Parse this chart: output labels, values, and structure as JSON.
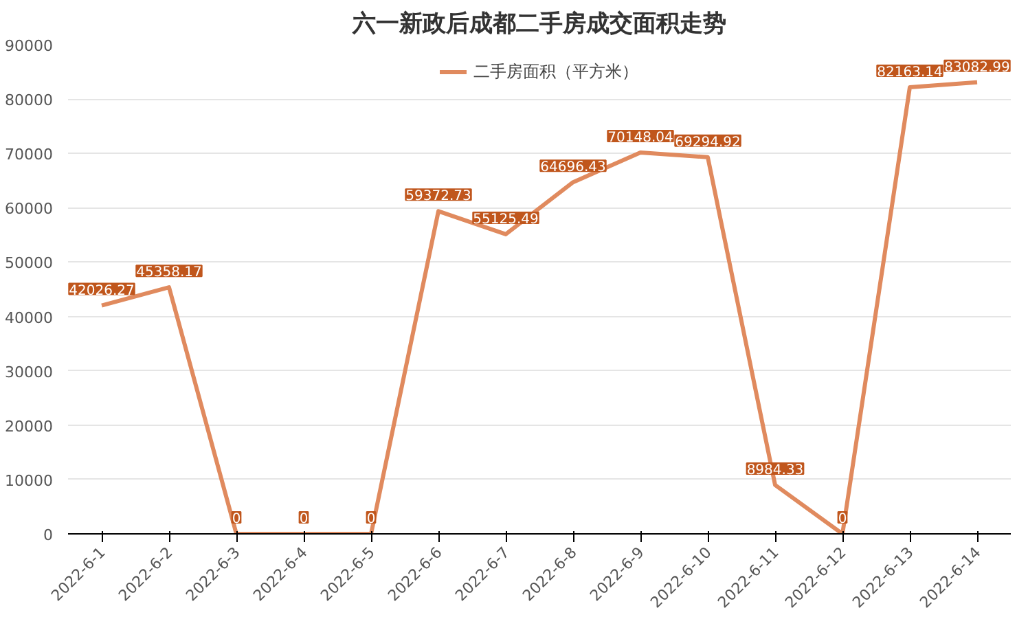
{
  "chart_data": {
    "type": "line",
    "title": "六一新政后成都二手房成交面积走势",
    "categories": [
      "2022-6-1",
      "2022-6-2",
      "2022-6-3",
      "2022-6-4",
      "2022-6-5",
      "2022-6-6",
      "2022-6-7",
      "2022-6-8",
      "2022-6-9",
      "2022-6-10",
      "2022-6-11",
      "2022-6-12",
      "2022-6-13",
      "2022-6-14"
    ],
    "series": [
      {
        "name": "二手房面积（平方米）",
        "color": "#e08a5e",
        "values": [
          42026.27,
          45358.17,
          0,
          0,
          0,
          59372.73,
          55125.49,
          64696.43,
          70148.04,
          69294.92,
          8984.33,
          0,
          82163.14,
          83082.99
        ]
      }
    ],
    "ylim": [
      0,
      90000
    ],
    "yticks": [
      0,
      10000,
      20000,
      30000,
      40000,
      50000,
      60000,
      70000,
      80000,
      90000
    ],
    "grid": "y",
    "legend": "top",
    "data_labels": true,
    "marker": "none",
    "line_style": "solid"
  }
}
